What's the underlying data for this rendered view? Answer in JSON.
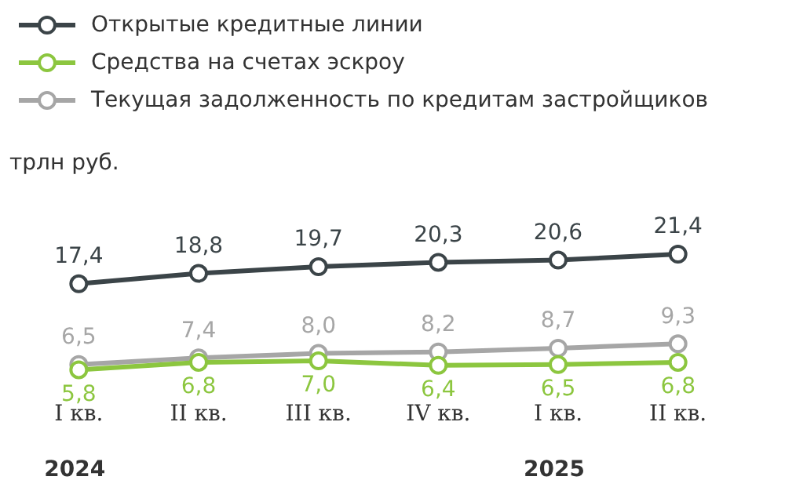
{
  "chart_data": {
    "type": "line",
    "ylabel": "трлн руб.",
    "categories": [
      "I кв.",
      "II кв.",
      "III кв.",
      "IV кв.",
      "I кв.",
      "II кв."
    ],
    "series": [
      {
        "name": "Открытые кредитные линии",
        "color": "#3b4448",
        "values": [
          17.4,
          18.8,
          19.7,
          20.3,
          20.6,
          21.4
        ],
        "value_labels": [
          "17,4",
          "18,8",
          "19,7",
          "20,3",
          "20,6",
          "21,4"
        ]
      },
      {
        "name": "Средства на счетах эскроу",
        "color": "#8cc63f",
        "values": [
          5.8,
          6.8,
          7.0,
          6.4,
          6.5,
          6.8
        ],
        "value_labels": [
          "5,8",
          "6,8",
          "7,0",
          "6,4",
          "6,5",
          "6,8"
        ]
      },
      {
        "name": "Текущая задолженность по кредитам застройщиков",
        "color": "#a6a6a6",
        "values": [
          6.5,
          7.4,
          8.0,
          8.2,
          8.7,
          9.3
        ],
        "value_labels": [
          "6,5",
          "7,4",
          "8,0",
          "8,2",
          "8,7",
          "9,3"
        ]
      }
    ],
    "annotations": [
      "2024",
      "2025"
    ],
    "marker": "circle",
    "line_style": "solid",
    "legend": "top left",
    "grid": false
  }
}
